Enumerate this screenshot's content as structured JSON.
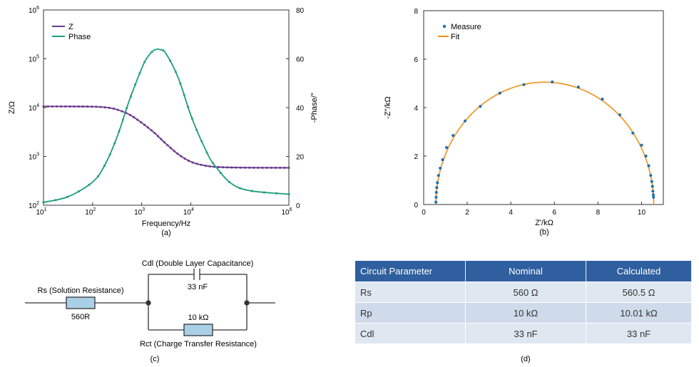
{
  "chart_data": [
    {
      "type": "line",
      "panel": "(a)",
      "xlabel": "Frequency/Hz",
      "ylabel_left": "Z/Ω",
      "ylabel_right": "-Phase/°",
      "x_scale": "log",
      "y_left_scale": "log",
      "xlim": [
        10,
        1000000
      ],
      "ylim_left": [
        100,
        1000000
      ],
      "ylim_right": [
        0,
        80
      ],
      "x_ticks": [
        {
          "base": "10",
          "exp": "1"
        },
        {
          "base": "10",
          "exp": "2"
        },
        {
          "base": "10",
          "exp": "3"
        },
        {
          "base": "10",
          "exp": "4"
        },
        {
          "base": "10",
          "exp": "6"
        }
      ],
      "y_left_ticks": [
        {
          "base": "10",
          "exp": "2"
        },
        {
          "base": "10",
          "exp": "3"
        },
        {
          "base": "10",
          "exp": "4"
        },
        {
          "base": "10",
          "exp": "5"
        },
        {
          "base": "10",
          "exp": "6"
        }
      ],
      "y_right_ticks": [
        "0",
        "20",
        "40",
        "60",
        "80"
      ],
      "legend": [
        "Z",
        "Phase"
      ],
      "legend_position": "top-left",
      "series": [
        {
          "name": "Z",
          "color": "#6b3a8e",
          "axis": "left",
          "x": [
            10,
            31.6,
            100,
            200,
            316,
            562,
            1000,
            1780,
            3160,
            5620,
            10000,
            17800,
            31600,
            100000,
            1000000
          ],
          "y": [
            10560,
            10550,
            10470,
            10000,
            9100,
            7200,
            4900,
            3100,
            1800,
            1100,
            780,
            660,
            610,
            590,
            585
          ]
        },
        {
          "name": "Phase",
          "color": "#1e9e7a",
          "axis": "right",
          "x": [
            10,
            31.6,
            100,
            178,
            316,
            562,
            1000,
            1300,
            1780,
            2370,
            3160,
            5620,
            10000,
            17800,
            31600,
            100000,
            1000000
          ],
          "y": [
            1.2,
            3.5,
            9.5,
            16.5,
            28,
            43,
            56,
            60.5,
            63.5,
            63.8,
            62,
            52,
            37,
            25,
            16,
            7,
            4.5
          ]
        }
      ]
    },
    {
      "type": "scatter",
      "panel": "(b)",
      "xlabel": "Z'/kΩ",
      "ylabel": "-Z''/kΩ",
      "xlim": [
        0,
        11
      ],
      "ylim": [
        0,
        8
      ],
      "x_ticks": [
        "0",
        "2",
        "4",
        "6",
        "8",
        "10"
      ],
      "y_ticks": [
        "0",
        "2",
        "4",
        "6",
        "8"
      ],
      "legend": [
        "Measure",
        "Fit"
      ],
      "legend_position": "top-left",
      "semicircle": {
        "Rs_kohm": 0.56,
        "Rp_kohm": 10.0
      },
      "measure_color": "#1f6fb5",
      "fit_color": "#f0901c",
      "measure_x": [
        0.56,
        0.57,
        0.58,
        0.6,
        0.63,
        0.68,
        0.76,
        0.87,
        1.05,
        1.35,
        1.9,
        2.6,
        3.5,
        4.6,
        5.9,
        7.1,
        8.2,
        9.0,
        9.6,
        10.0,
        10.2,
        10.33,
        10.42,
        10.47,
        10.5,
        10.52,
        10.54,
        10.55
      ],
      "measure_y": [
        0.1,
        0.3,
        0.5,
        0.7,
        0.9,
        1.2,
        1.5,
        1.85,
        2.35,
        2.85,
        3.45,
        4.05,
        4.6,
        4.95,
        5.06,
        4.85,
        4.35,
        3.7,
        2.95,
        2.45,
        2.0,
        1.6,
        1.2,
        0.95,
        0.75,
        0.55,
        0.4,
        0.3
      ]
    }
  ],
  "captions": {
    "a": "(a)",
    "b": "(b)",
    "c": "(c)",
    "d": "(d)"
  },
  "circuit": {
    "rs_label": "Rs (Solution Resistance)",
    "rs_value": "560R",
    "cdl_label": "Cdl (Double Layer Capacitance)",
    "cdl_value": "33 nF",
    "rct_value": "10 kΩ",
    "rct_label": "Rct (Charge Transfer Resistance)",
    "resistor_color": "#a9d0e6"
  },
  "table": {
    "headers": [
      "Circuit Parameter",
      "Nominal",
      "Calculated"
    ],
    "rows": [
      [
        "Rs",
        "560 Ω",
        "560.5 Ω"
      ],
      [
        "Rp",
        "10 kΩ",
        "10.01 kΩ"
      ],
      [
        "Cdl",
        "33 nF",
        "33 nF"
      ]
    ]
  },
  "colors": {
    "header_bg": "#2f5f9e",
    "row_bg": "#dfe7f1"
  }
}
